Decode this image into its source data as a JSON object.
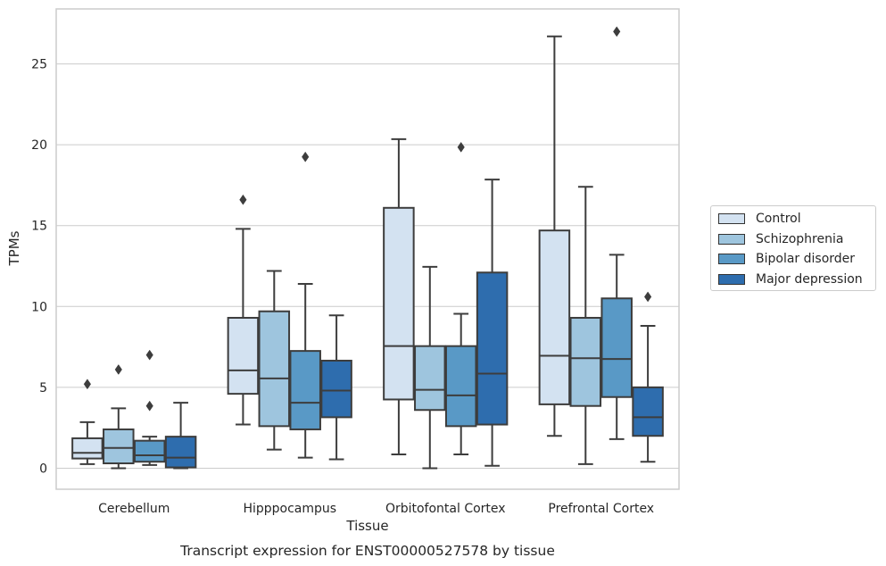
{
  "chart_data": {
    "type": "box",
    "caption": "Transcript expression for ENST00000527578 by tissue",
    "xlabel": "Tissue",
    "ylabel": "TPMs",
    "ylim": [
      -1.3,
      28.4
    ],
    "yticks": [
      0,
      5,
      10,
      15,
      20,
      25
    ],
    "grid": true,
    "legend_position": "right",
    "categories": [
      "Cerebellum",
      "Hipppocampus",
      "Orbitofontal Cortex",
      "Prefrontal Cortex"
    ],
    "series": [
      {
        "name": "Control",
        "color": "#d3e2f1",
        "boxes": [
          {
            "whislo": 0.25,
            "q1": 0.6,
            "med": 0.95,
            "q3": 1.85,
            "whishi": 2.85,
            "fliers": [
              5.2
            ]
          },
          {
            "whislo": 2.7,
            "q1": 4.6,
            "med": 6.05,
            "q3": 9.3,
            "whishi": 14.8,
            "fliers": [
              16.6
            ]
          },
          {
            "whislo": 0.85,
            "q1": 4.25,
            "med": 7.55,
            "q3": 16.1,
            "whishi": 20.35,
            "fliers": []
          },
          {
            "whislo": 2.0,
            "q1": 3.95,
            "med": 6.95,
            "q3": 14.7,
            "whishi": 26.7,
            "fliers": []
          }
        ]
      },
      {
        "name": "Schizophrenia",
        "color": "#9ec5de",
        "boxes": [
          {
            "whislo": 0.0,
            "q1": 0.3,
            "med": 1.25,
            "q3": 2.4,
            "whishi": 3.7,
            "fliers": [
              6.1
            ]
          },
          {
            "whislo": 1.15,
            "q1": 2.6,
            "med": 5.55,
            "q3": 9.7,
            "whishi": 12.2,
            "fliers": []
          },
          {
            "whislo": 0.0,
            "q1": 3.6,
            "med": 4.85,
            "q3": 7.55,
            "whishi": 12.45,
            "fliers": []
          },
          {
            "whislo": 0.25,
            "q1": 3.85,
            "med": 6.8,
            "q3": 9.3,
            "whishi": 17.4,
            "fliers": []
          }
        ]
      },
      {
        "name": "Bipolar disorder",
        "color": "#5999c6",
        "boxes": [
          {
            "whislo": 0.2,
            "q1": 0.4,
            "med": 0.8,
            "q3": 1.7,
            "whishi": 1.95,
            "fliers": [
              3.85,
              7.0
            ]
          },
          {
            "whislo": 0.65,
            "q1": 2.4,
            "med": 4.05,
            "q3": 7.25,
            "whishi": 11.4,
            "fliers": [
              19.25
            ]
          },
          {
            "whislo": 0.85,
            "q1": 2.6,
            "med": 4.5,
            "q3": 7.55,
            "whishi": 9.55,
            "fliers": [
              19.85
            ]
          },
          {
            "whislo": 1.8,
            "q1": 4.4,
            "med": 6.75,
            "q3": 10.5,
            "whishi": 13.2,
            "fliers": [
              27.0
            ]
          }
        ]
      },
      {
        "name": "Major depression",
        "color": "#2e6dae",
        "boxes": [
          {
            "whislo": 0.0,
            "q1": 0.05,
            "med": 0.65,
            "q3": 1.95,
            "whishi": 4.05,
            "fliers": []
          },
          {
            "whislo": 0.55,
            "q1": 3.15,
            "med": 4.8,
            "q3": 6.65,
            "whishi": 9.45,
            "fliers": []
          },
          {
            "whislo": 0.15,
            "q1": 2.7,
            "med": 5.85,
            "q3": 12.1,
            "whishi": 17.85,
            "fliers": []
          },
          {
            "whislo": 0.4,
            "q1": 2.0,
            "med": 3.15,
            "q3": 5.0,
            "whishi": 8.8,
            "fliers": [
              10.6
            ]
          }
        ]
      }
    ]
  }
}
